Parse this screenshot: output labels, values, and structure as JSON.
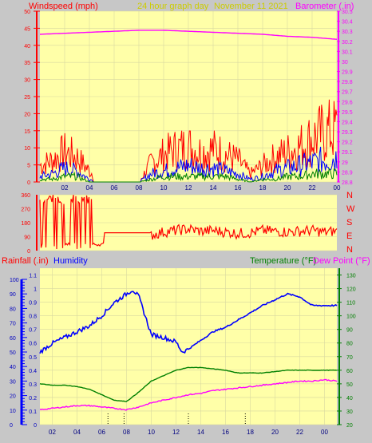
{
  "header": {
    "title": "24 hour graph day",
    "date": "November 11 2021",
    "left_label": "Windspeed (mph)",
    "right_label": "Barometer (.in)"
  },
  "middle": {
    "compass": [
      "N",
      "W",
      "S",
      "E",
      "N"
    ]
  },
  "bottom_header": {
    "rain_label": "Rainfall (.in)",
    "humidity_label": "Humidity",
    "temp_label": "Temperature (°F)",
    "dew_label": "Dew Point (°F)"
  },
  "colors": {
    "plot_bg": "#ffffa8",
    "gust": "#ff0000",
    "avg": "#0000ff",
    "green": "#008000",
    "baro": "#ff00ff",
    "title": "#cccc00"
  },
  "chart_data": [
    {
      "type": "line",
      "title": "24 hour graph day",
      "xlabel": "",
      "ylabel": "Windspeed (mph)",
      "ylabel_right": "Barometer (.in)",
      "x_ticks": [
        "02",
        "04",
        "06",
        "08",
        "10",
        "12",
        "14",
        "16",
        "18",
        "20",
        "22",
        "00"
      ],
      "ylim": [
        0,
        50
      ],
      "y_ticks": [
        0,
        5,
        10,
        15,
        20,
        25,
        30,
        35,
        40,
        45,
        50
      ],
      "ylim_right": [
        28.8,
        30.5
      ],
      "y_ticks_right": [
        "28.8",
        "28.9",
        "29",
        "29.1",
        "29.2",
        "29.3",
        "29.4",
        "29.5",
        "29.6",
        "29.7",
        "29.8",
        "29.9",
        "30",
        "30.1",
        "30.2",
        "30.3",
        "30.4",
        "30.5"
      ],
      "grid": true,
      "series": [
        {
          "name": "gust",
          "axis": "left",
          "x": [
            0,
            1,
            2,
            3,
            4,
            5,
            6,
            7,
            8,
            9,
            10,
            11,
            12,
            13,
            14,
            15,
            16,
            17,
            18,
            19,
            20,
            21,
            22,
            23,
            24
          ],
          "values": [
            6,
            8,
            11,
            9,
            4,
            0,
            0,
            0,
            0,
            7,
            10,
            12,
            13,
            11,
            12,
            10,
            8,
            3,
            6,
            9,
            11,
            13,
            16,
            18,
            19
          ]
        },
        {
          "name": "average",
          "axis": "left",
          "x": [
            0,
            1,
            2,
            3,
            4,
            5,
            6,
            7,
            8,
            9,
            10,
            11,
            12,
            13,
            14,
            15,
            16,
            17,
            18,
            19,
            20,
            21,
            22,
            23,
            24
          ],
          "values": [
            2,
            3,
            5,
            4,
            1,
            0,
            0,
            0,
            0,
            3,
            4,
            5,
            6,
            5,
            5,
            4,
            3,
            1,
            2,
            4,
            5,
            6,
            7,
            8,
            9
          ]
        },
        {
          "name": "low",
          "axis": "left",
          "x": [
            0,
            1,
            2,
            3,
            4,
            5,
            6,
            7,
            8,
            9,
            10,
            11,
            12,
            13,
            14,
            15,
            16,
            17,
            18,
            19,
            20,
            21,
            22,
            23,
            24
          ],
          "values": [
            1,
            1,
            2,
            2,
            0,
            0,
            0,
            0,
            0,
            1,
            2,
            2,
            2,
            2,
            2,
            2,
            1,
            0,
            1,
            1,
            2,
            2,
            3,
            3,
            3
          ]
        },
        {
          "name": "barometer",
          "axis": "right",
          "x": [
            0,
            1,
            2,
            3,
            4,
            5,
            6,
            7,
            8,
            9,
            10,
            11,
            12,
            13,
            14,
            15,
            16,
            17,
            18,
            19,
            20,
            21,
            22,
            23,
            24
          ],
          "values": [
            30.27,
            30.275,
            30.28,
            30.285,
            30.29,
            30.295,
            30.3,
            30.305,
            30.31,
            30.31,
            30.31,
            30.305,
            30.3,
            30.295,
            30.29,
            30.285,
            30.28,
            30.275,
            30.27,
            30.26,
            30.25,
            30.245,
            30.24,
            30.23,
            30.22
          ]
        }
      ]
    },
    {
      "type": "line",
      "title": "",
      "ylim": [
        0,
        360
      ],
      "y_ticks": [
        0,
        90,
        180,
        270,
        360
      ],
      "x_ticks": [],
      "series": [
        {
          "name": "wind direction",
          "x": [
            0,
            4,
            4.2,
            6,
            8,
            9,
            10,
            11,
            12,
            13,
            14,
            15,
            16,
            17,
            18,
            19,
            20,
            21,
            22,
            23,
            24
          ],
          "values": [
            200,
            150,
            30,
            115,
            115,
            100,
            120,
            130,
            140,
            125,
            130,
            120,
            110,
            115,
            130,
            125,
            120,
            125,
            130,
            120,
            125
          ]
        }
      ]
    },
    {
      "type": "line",
      "title": "",
      "x_ticks": [
        "02",
        "04",
        "06",
        "08",
        "10",
        "12",
        "14",
        "16",
        "18",
        "20",
        "22",
        "00"
      ],
      "y_ticks_left_outer": [
        0,
        10,
        20,
        30,
        40,
        50,
        60,
        70,
        80,
        90,
        100
      ],
      "y_ticks_left_inner": [
        "0",
        "0.1",
        "0.2",
        "0.3",
        "0.4",
        "0.5",
        "0.6",
        "0.7",
        "0.8",
        "0.9",
        "1",
        "1.1"
      ],
      "ylim": [
        0,
        1.15
      ],
      "y_ticks_right": [
        20,
        30,
        40,
        50,
        60,
        70,
        80,
        90,
        100,
        110,
        120,
        130
      ],
      "ylim_right": [
        20,
        135
      ],
      "grid": true,
      "series": [
        {
          "name": "Humidity",
          "axis": "left_outer_percent",
          "x": [
            0,
            1,
            2,
            3,
            4,
            5,
            6,
            7,
            7.5,
            8,
            9,
            10,
            11,
            11.5,
            12,
            13,
            14,
            15,
            16,
            17,
            18,
            19,
            20,
            21,
            22,
            23,
            24
          ],
          "values": [
            50,
            56,
            60,
            64,
            68,
            75,
            84,
            90,
            93,
            88,
            62,
            60,
            57,
            50,
            52,
            58,
            64,
            67,
            72,
            77,
            82,
            86,
            90,
            88,
            82,
            82,
            82
          ]
        },
        {
          "name": "Temperature (°F)",
          "axis": "right",
          "x": [
            0,
            1,
            2,
            3,
            4,
            5,
            6,
            7,
            8,
            9,
            10,
            11,
            12,
            13,
            14,
            15,
            16,
            17,
            18,
            19,
            20,
            21,
            22,
            23,
            24
          ],
          "values": [
            50,
            49,
            49,
            48,
            46,
            42,
            38,
            37,
            44,
            52,
            56,
            60,
            62,
            62,
            61,
            60,
            58,
            58,
            58,
            59,
            60,
            60,
            60,
            60,
            60
          ]
        },
        {
          "name": "Dew Point (°F)",
          "axis": "right",
          "x": [
            0,
            1,
            2,
            3,
            4,
            5,
            6,
            7,
            8,
            9,
            10,
            11,
            12,
            13,
            14,
            15,
            16,
            17,
            18,
            19,
            20,
            21,
            22,
            23,
            24
          ],
          "values": [
            31,
            32,
            33,
            34,
            34,
            33,
            32,
            31,
            33,
            36,
            38,
            40,
            42,
            43,
            45,
            46,
            47,
            48,
            49,
            50,
            51,
            52,
            52,
            53,
            52
          ]
        }
      ],
      "rain_markers_x": [
        5.5,
        6.8,
        12,
        16.6
      ]
    }
  ]
}
